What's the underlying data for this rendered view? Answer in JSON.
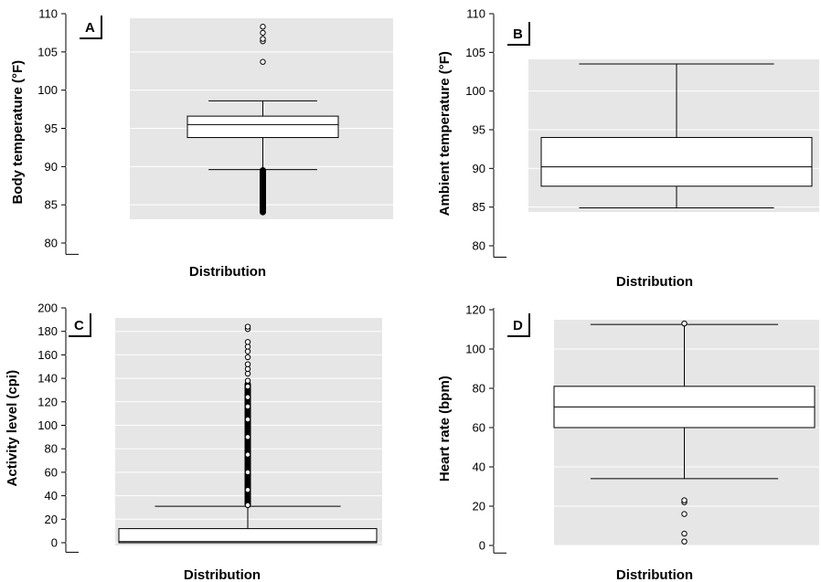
{
  "chart_data": [
    {
      "type": "boxplot",
      "panel_label": "A",
      "ylabel": "Body temperature (°F)",
      "xlabel": "Distribution",
      "ylim": [
        79,
        110
      ],
      "yticks": [
        80,
        85,
        90,
        95,
        100,
        105,
        110
      ],
      "box": {
        "whisker_low": 89.6,
        "q1": 93.8,
        "median": 95.5,
        "q3": 96.6,
        "whisker_high": 98.6
      },
      "outliers_high": [
        103.7,
        106.4,
        106.7,
        107.5,
        108.3
      ],
      "outliers_low_range": [
        84.0,
        89.5
      ]
    },
    {
      "type": "boxplot",
      "panel_label": "B",
      "ylabel": "Ambient temperature (°F)",
      "xlabel": "Distribution",
      "ylim": [
        79,
        110
      ],
      "yticks": [
        80,
        85,
        90,
        95,
        100,
        105,
        110
      ],
      "box": {
        "whisker_low": 84.9,
        "q1": 87.7,
        "median": 90.2,
        "q3": 94.0,
        "whisker_high": 103.5
      },
      "outliers_high": [],
      "outliers_low_range": []
    },
    {
      "type": "boxplot",
      "panel_label": "C",
      "ylabel": "Activity level (cpi)",
      "xlabel": "Distribution",
      "ylim": [
        -5,
        200
      ],
      "yticks": [
        0,
        20,
        40,
        60,
        80,
        100,
        120,
        140,
        160,
        180,
        200
      ],
      "box": {
        "whisker_low": 0,
        "q1": 0,
        "median": 1,
        "q3": 12,
        "whisker_high": 31
      },
      "outliers_high": [
        32,
        45,
        60,
        75,
        90,
        105,
        116,
        124,
        133,
        138,
        144,
        148,
        152,
        158,
        163,
        167,
        171,
        182,
        184
      ],
      "outliers_low_range": [],
      "outliers_dense_range": [
        32,
        135
      ]
    },
    {
      "type": "boxplot",
      "panel_label": "D",
      "ylabel": "Heart rate (bpm)",
      "xlabel": "Distribution",
      "ylim": [
        -2,
        120
      ],
      "yticks": [
        0,
        20,
        40,
        60,
        80,
        100,
        120
      ],
      "box": {
        "whisker_low": 34,
        "q1": 60,
        "median": 70.5,
        "q3": 81,
        "whisker_high": 112.5
      },
      "outliers_high": [
        113
      ],
      "outliers_low": [
        2,
        6,
        16,
        22,
        23
      ],
      "outliers_low_range": []
    }
  ]
}
